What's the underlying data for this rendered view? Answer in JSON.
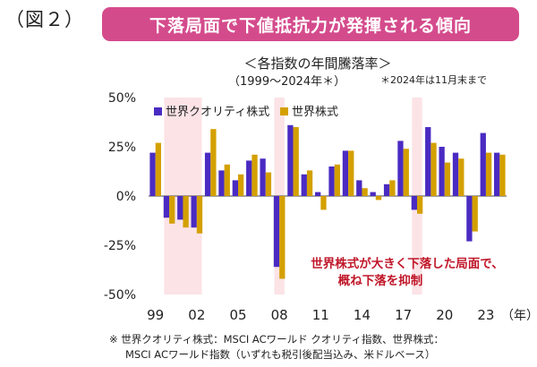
{
  "figure_label": "（図２）",
  "banner": {
    "title": "下落局面で下値抵抗力が発揮される傾向"
  },
  "chart_title": "＜各指数の年間騰落率＞",
  "chart_subtitle": "（1999〜2024年＊）",
  "chart_note": "＊2024年は11月末まで",
  "annotation": {
    "line1": "世界株式が大きく下落した局面で、",
    "line2": "概ね下落を抑制"
  },
  "footnote": {
    "line1": "※ 世界クオリティ株式：MSCI ACワールド クオリティ指数、世界株式：",
    "line2": "MSCI ACワールド指数（いずれも税引後配当込み、米ドルベース）"
  },
  "colors": {
    "quality": "#4a2bc2",
    "world": "#d4a000",
    "highlight": "#fbe3e6",
    "banner": "#d44b8c",
    "annotation": "#c0182a"
  },
  "chart_data": {
    "type": "bar",
    "xlabel": "（年）",
    "ylim": [
      -50,
      50
    ],
    "yticks": [
      -50,
      -25,
      0,
      25,
      50
    ],
    "ytick_labels": [
      "-50%",
      "-25%",
      "0%",
      "25%",
      "50%"
    ],
    "categories": [
      "1999",
      "2000",
      "2001",
      "2002",
      "2003",
      "2004",
      "2005",
      "2006",
      "2007",
      "2008",
      "2009",
      "2010",
      "2011",
      "2012",
      "2013",
      "2014",
      "2015",
      "2016",
      "2017",
      "2018",
      "2019",
      "2020",
      "2021",
      "2022",
      "2023",
      "2024"
    ],
    "xtick_labels": [
      {
        "index": 0,
        "label": "99"
      },
      {
        "index": 3,
        "label": "02"
      },
      {
        "index": 6,
        "label": "05"
      },
      {
        "index": 9,
        "label": "08"
      },
      {
        "index": 12,
        "label": "11"
      },
      {
        "index": 15,
        "label": "14"
      },
      {
        "index": 18,
        "label": "17"
      },
      {
        "index": 21,
        "label": "20"
      },
      {
        "index": 24,
        "label": "23"
      }
    ],
    "highlight_ranges": [
      [
        1,
        3
      ],
      [
        9,
        9
      ],
      [
        19,
        19
      ]
    ],
    "series": [
      {
        "name": "世界クオリティ株式",
        "values": [
          22,
          -11,
          -12,
          -16,
          22,
          13,
          8,
          18,
          19,
          -36,
          36,
          11,
          2,
          15,
          23,
          8,
          2,
          6,
          28,
          -7,
          35,
          25,
          22,
          -23,
          32,
          22
        ]
      },
      {
        "name": "世界株式",
        "values": [
          27,
          -14,
          -16,
          -19,
          34,
          16,
          11,
          21,
          12,
          -42,
          35,
          13,
          -7,
          16,
          23,
          4,
          -2,
          8,
          24,
          -9,
          27,
          17,
          19,
          -18,
          22,
          21
        ]
      }
    ],
    "legend_position": "top-left"
  }
}
